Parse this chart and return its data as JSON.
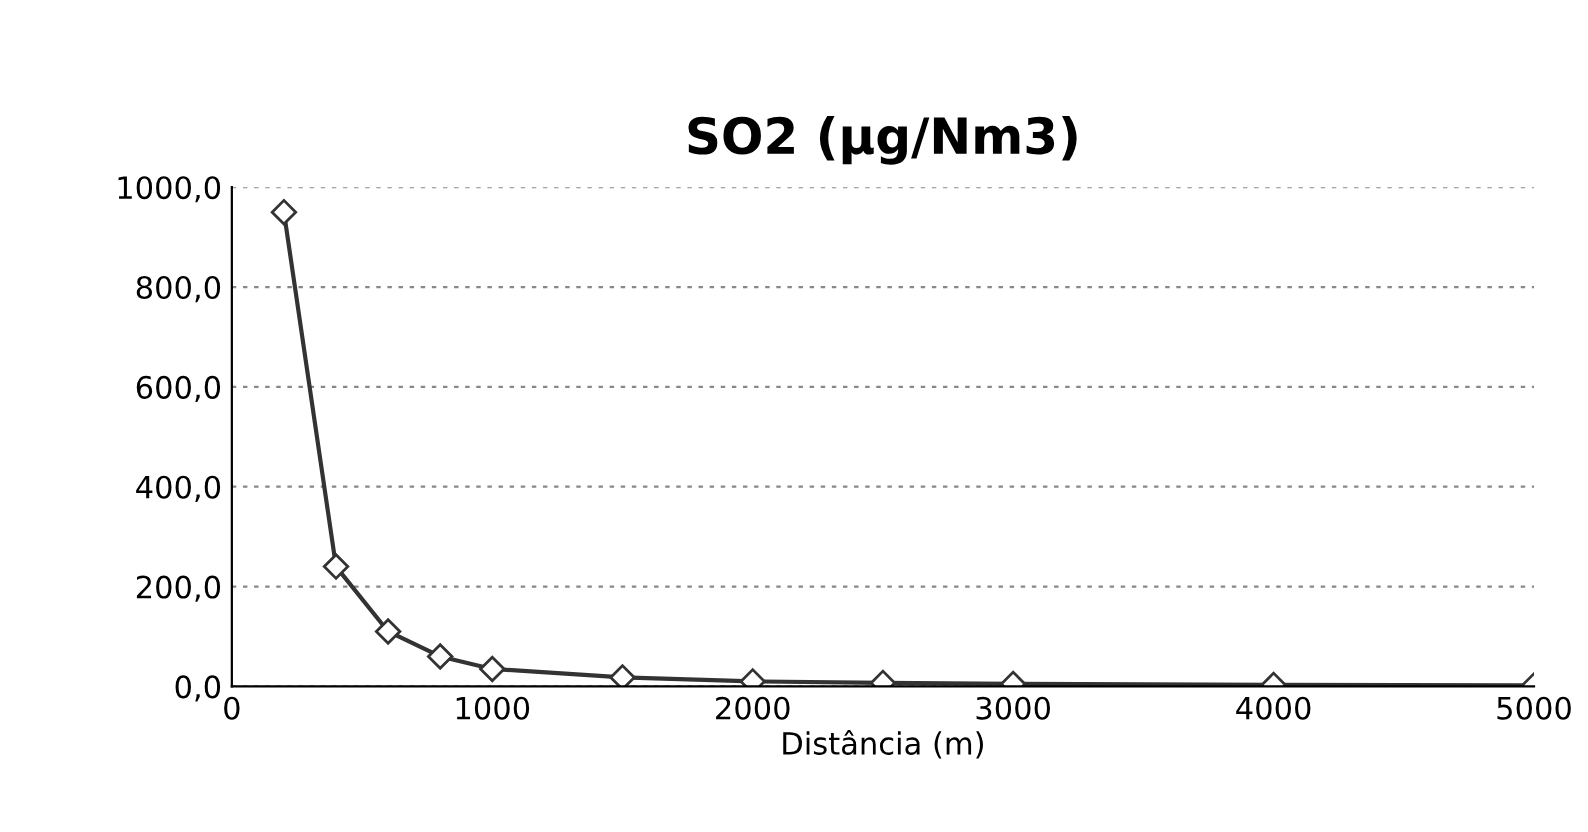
{
  "chart_data": {
    "type": "line",
    "title": "SO2 (µg/Nm3)",
    "xlabel": "Distância (m)",
    "x": [
      200,
      400,
      600,
      800,
      1000,
      1500,
      2000,
      2500,
      3000,
      4000,
      5000
    ],
    "series": [
      {
        "color": "#333333",
        "values": [
          950,
          240,
          110,
          60,
          35,
          18,
          10,
          7,
          5,
          3,
          2
        ]
      }
    ],
    "xlim": [
      0,
      5000
    ],
    "xticks": [
      0,
      1000,
      2000,
      3000,
      4000,
      5000
    ],
    "ylim": [
      0,
      1000
    ],
    "yticks": [
      {
        "value": 0,
        "label": "0,0"
      },
      {
        "value": 200,
        "label": "200,0"
      },
      {
        "value": 400,
        "label": "400,0"
      },
      {
        "value": 600,
        "label": "600,0"
      },
      {
        "value": 800,
        "label": "800,0"
      },
      {
        "value": 1000,
        "label": "1000,0"
      }
    ],
    "grid": "y",
    "marker": "diamond",
    "line_style": "solid",
    "legend": false
  }
}
